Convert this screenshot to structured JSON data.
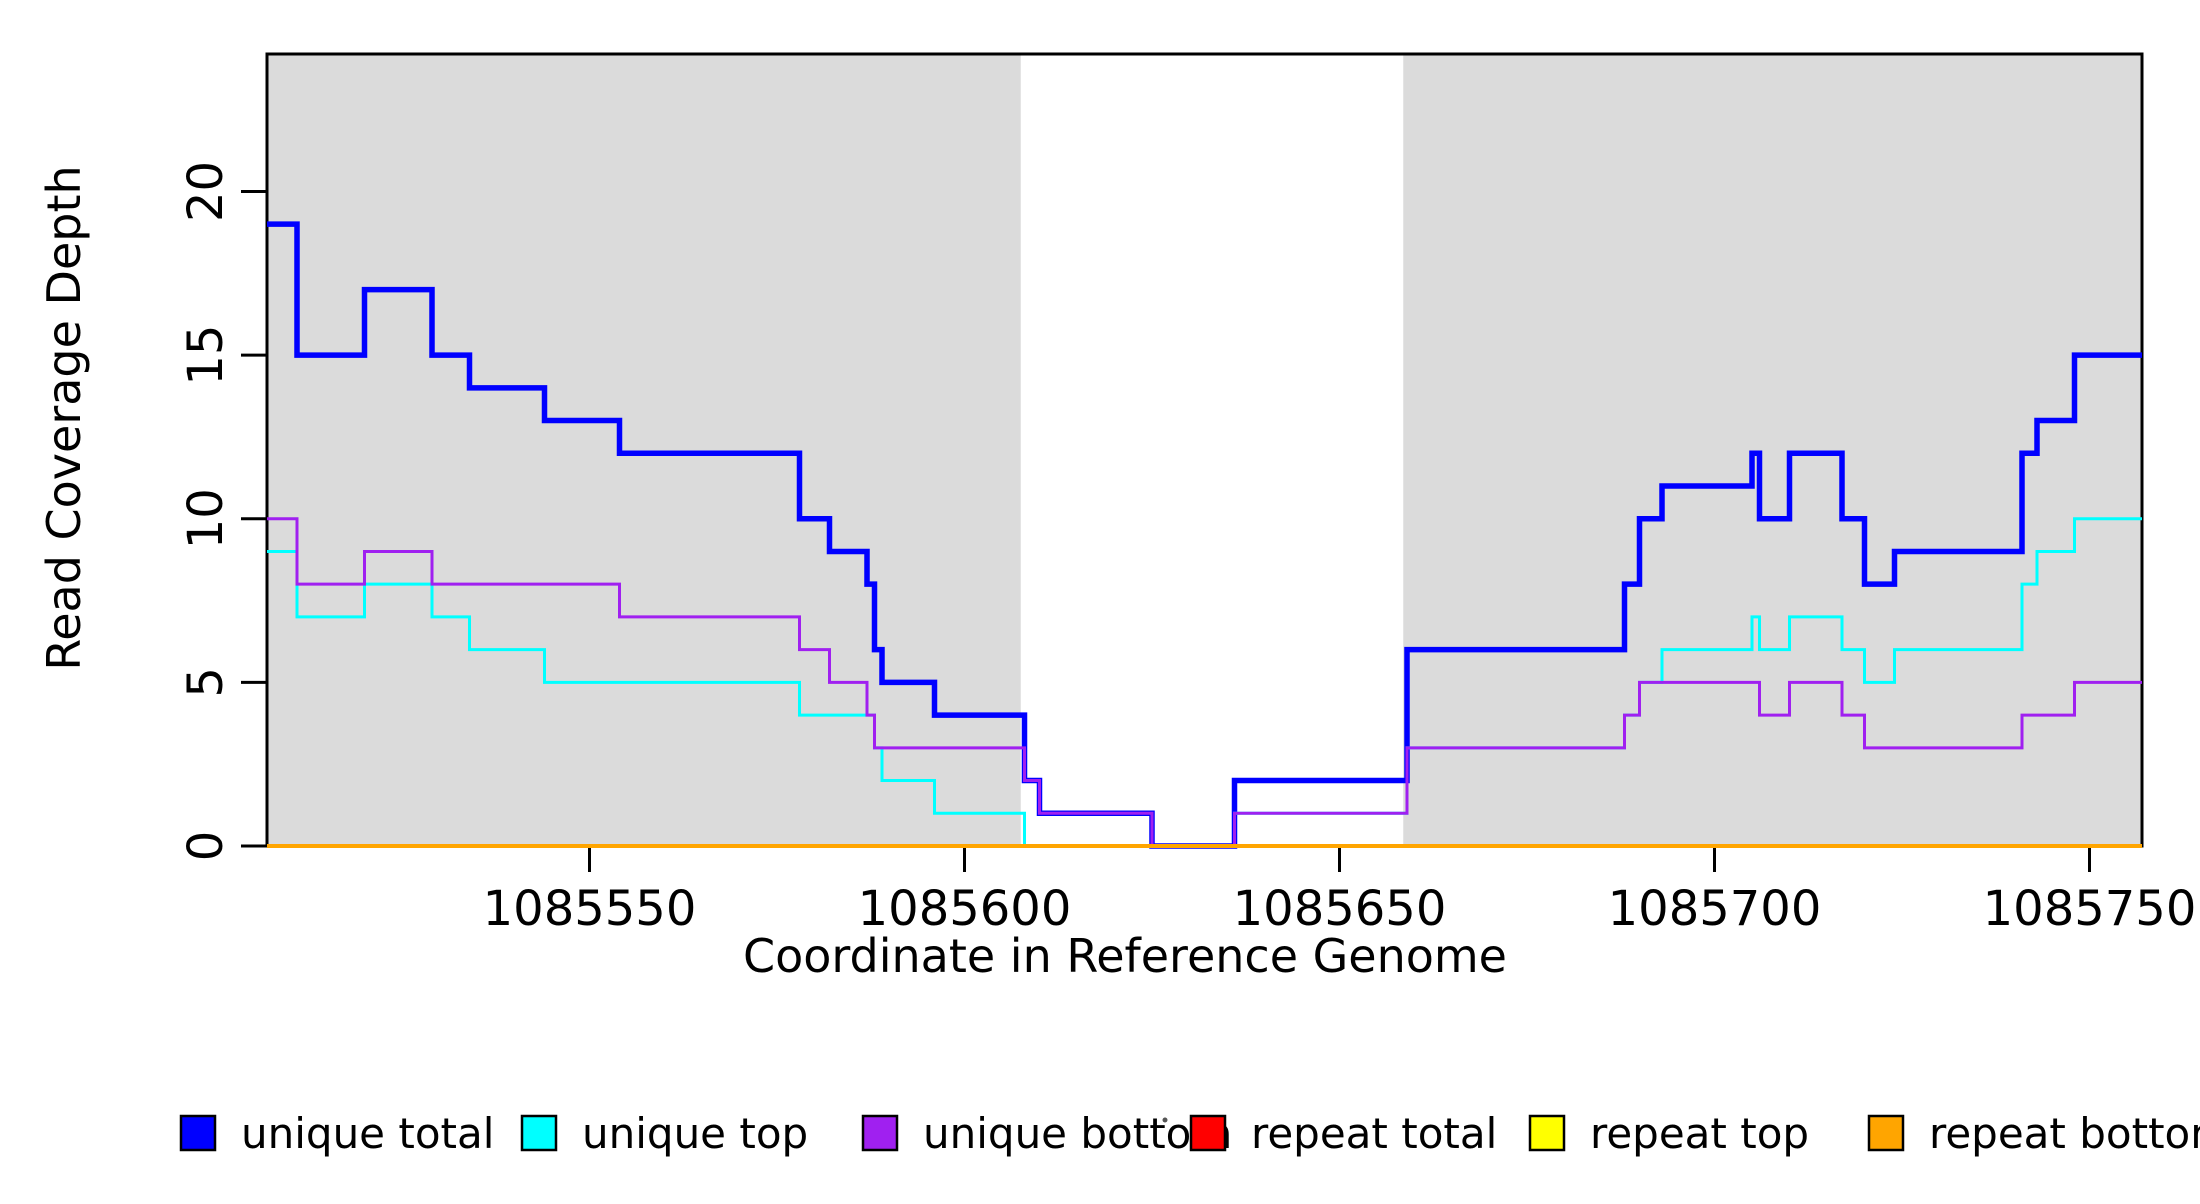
{
  "chart_data": {
    "type": "line",
    "subtype": "step",
    "title": "",
    "xlabel": "Coordinate in Reference Genome",
    "ylabel": "Read Coverage Depth",
    "xlim": [
      1085507,
      1085757
    ],
    "ylim": [
      0,
      24.2
    ],
    "xticks": [
      1085550,
      1085600,
      1085650,
      1085700,
      1085750
    ],
    "yticks": [
      0,
      5,
      10,
      15,
      20
    ],
    "grid": false,
    "background": "#ffffff",
    "shade_color": "#dbdbdb",
    "shaded_regions": [
      {
        "x0": 1085507,
        "x1": 1085607.5
      },
      {
        "x0": 1085658.5,
        "x1": 1085757
      }
    ],
    "series": [
      {
        "name": "unique total",
        "color": "#0000ff",
        "width": 5.5,
        "steps": [
          [
            1085507,
            19
          ],
          [
            1085511,
            15
          ],
          [
            1085520,
            17
          ],
          [
            1085529,
            15
          ],
          [
            1085534,
            14
          ],
          [
            1085544,
            13
          ],
          [
            1085554,
            12
          ],
          [
            1085578,
            10
          ],
          [
            1085582,
            9
          ],
          [
            1085587,
            8
          ],
          [
            1085588,
            6
          ],
          [
            1085589,
            5
          ],
          [
            1085596,
            4
          ],
          [
            1085608,
            2
          ],
          [
            1085610,
            1
          ],
          [
            1085625,
            0
          ],
          [
            1085636,
            2
          ],
          [
            1085659,
            6
          ],
          [
            1085688,
            8
          ],
          [
            1085690,
            10
          ],
          [
            1085693,
            11
          ],
          [
            1085705,
            12
          ],
          [
            1085706,
            10
          ],
          [
            1085710,
            12
          ],
          [
            1085717,
            10
          ],
          [
            1085720,
            8
          ],
          [
            1085724,
            9
          ],
          [
            1085741,
            12
          ],
          [
            1085743,
            13
          ],
          [
            1085748,
            15
          ],
          [
            1085757,
            15
          ]
        ]
      },
      {
        "name": "unique top",
        "color": "#00ffff",
        "width": 3,
        "steps": [
          [
            1085507,
            9
          ],
          [
            1085511,
            7
          ],
          [
            1085520,
            8
          ],
          [
            1085529,
            7
          ],
          [
            1085534,
            6
          ],
          [
            1085544,
            5
          ],
          [
            1085578,
            4
          ],
          [
            1085588,
            3
          ],
          [
            1085589,
            2
          ],
          [
            1085596,
            1
          ],
          [
            1085608,
            0
          ],
          [
            1085636,
            1
          ],
          [
            1085659,
            3
          ],
          [
            1085688,
            4
          ],
          [
            1085690,
            5
          ],
          [
            1085693,
            6
          ],
          [
            1085705,
            7
          ],
          [
            1085706,
            6
          ],
          [
            1085710,
            7
          ],
          [
            1085717,
            6
          ],
          [
            1085720,
            5
          ],
          [
            1085724,
            6
          ],
          [
            1085741,
            8
          ],
          [
            1085743,
            9
          ],
          [
            1085748,
            10
          ],
          [
            1085757,
            10
          ]
        ]
      },
      {
        "name": "unique bottom",
        "color": "#a020f0",
        "width": 3,
        "steps": [
          [
            1085507,
            10
          ],
          [
            1085511,
            8
          ],
          [
            1085520,
            9
          ],
          [
            1085529,
            8
          ],
          [
            1085554,
            7
          ],
          [
            1085578,
            6
          ],
          [
            1085582,
            5
          ],
          [
            1085587,
            4
          ],
          [
            1085588,
            3
          ],
          [
            1085608,
            2
          ],
          [
            1085610,
            1
          ],
          [
            1085625,
            0
          ],
          [
            1085636,
            1
          ],
          [
            1085659,
            3
          ],
          [
            1085688,
            4
          ],
          [
            1085690,
            5
          ],
          [
            1085706,
            4
          ],
          [
            1085710,
            5
          ],
          [
            1085717,
            4
          ],
          [
            1085720,
            3
          ],
          [
            1085741,
            4
          ],
          [
            1085748,
            5
          ],
          [
            1085757,
            5
          ]
        ]
      },
      {
        "name": "repeat total",
        "color": "#ff0000",
        "width": 3,
        "steps": [
          [
            1085507,
            0
          ],
          [
            1085757,
            0
          ]
        ]
      },
      {
        "name": "repeat top",
        "color": "#ffff00",
        "width": 3,
        "steps": [
          [
            1085507,
            0
          ],
          [
            1085757,
            0
          ]
        ]
      },
      {
        "name": "repeat bottom",
        "color": "#ffa500",
        "width": 4,
        "steps": [
          [
            1085507,
            0
          ],
          [
            1085757,
            0
          ]
        ]
      }
    ],
    "legend_position": "bottom"
  },
  "legend": {
    "items": [
      {
        "label": "unique total",
        "color": "#0000ff"
      },
      {
        "label": "unique top",
        "color": "#00ffff"
      },
      {
        "label": "unique bottom",
        "color": "#a020f0"
      },
      {
        "label": "repeat total",
        "color": "#ff0000"
      },
      {
        "label": "repeat top",
        "color": "#ffff00"
      },
      {
        "label": "repeat bottom",
        "color": "#ffa500"
      }
    ]
  }
}
